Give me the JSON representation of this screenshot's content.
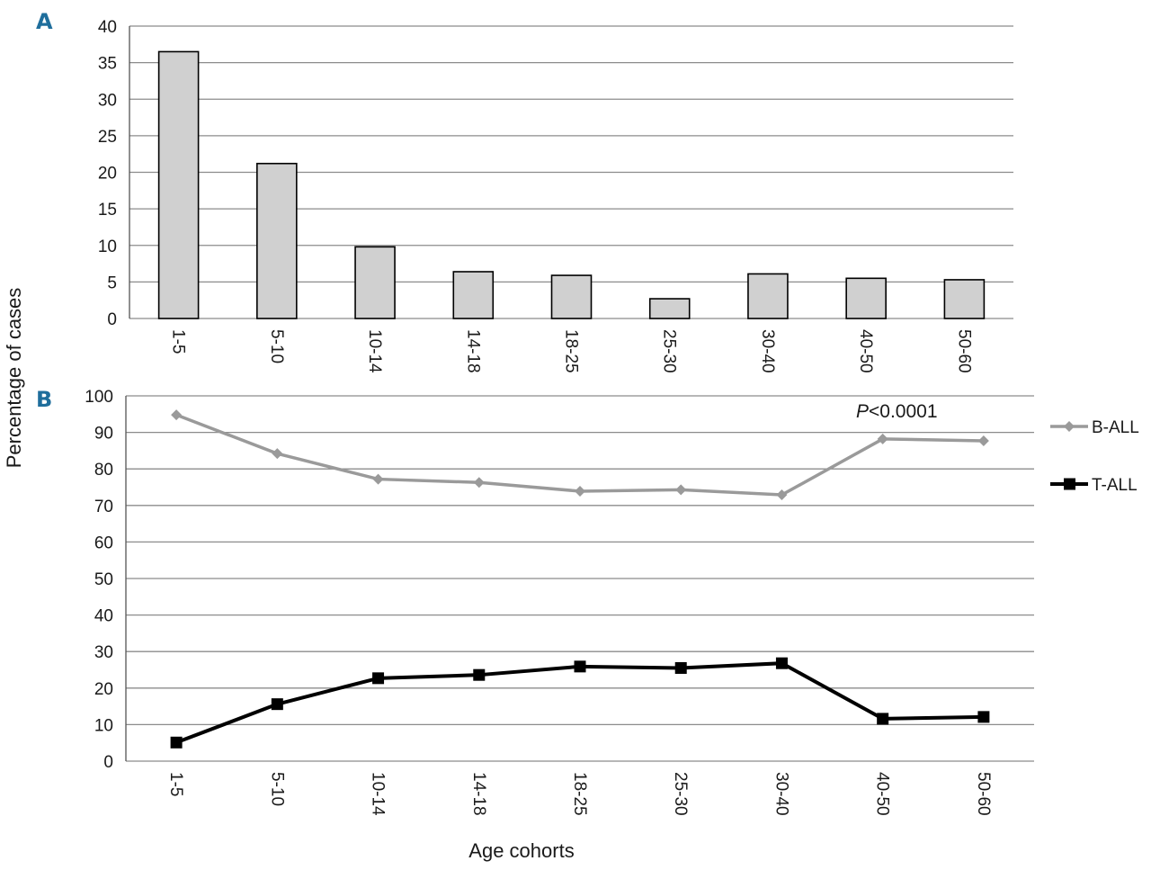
{
  "figure": {
    "ylabel": "Percentage of cases",
    "xlabel": "Age cohorts",
    "accent_color": "#1f6e9c"
  },
  "chart_data": [
    {
      "type": "bar",
      "panel": "A",
      "categories": [
        "1-5",
        "5-10",
        "10-14",
        "14-18",
        "18-25",
        "25-30",
        "30-40",
        "40-50",
        "50-60"
      ],
      "values": [
        36.5,
        21.2,
        9.8,
        6.4,
        5.9,
        2.7,
        6.1,
        5.5,
        5.3
      ],
      "ylim": [
        0,
        40
      ],
      "yticks": [
        0,
        5,
        10,
        15,
        20,
        25,
        30,
        35,
        40
      ],
      "grid": true,
      "bar_color": "#d0d0d0"
    },
    {
      "type": "line",
      "panel": "B",
      "categories": [
        "1-5",
        "5-10",
        "10-14",
        "14-18",
        "18-25",
        "25-30",
        "30-40",
        "40-50",
        "50-60"
      ],
      "series": [
        {
          "name": "B-ALL",
          "values": [
            94.8,
            84.2,
            77.2,
            76.3,
            73.9,
            74.3,
            72.9,
            88.2,
            87.7
          ],
          "color": "#9a9a9a",
          "marker": "diamond"
        },
        {
          "name": "T-ALL",
          "values": [
            5.1,
            15.6,
            22.7,
            23.6,
            25.9,
            25.5,
            26.8,
            11.6,
            12.1
          ],
          "color": "#000000",
          "marker": "square"
        }
      ],
      "ylim": [
        0,
        100
      ],
      "yticks": [
        0,
        10,
        20,
        30,
        40,
        50,
        60,
        70,
        80,
        90,
        100
      ],
      "grid": true,
      "legend": "right",
      "annotation": {
        "italic": "P",
        "rest": "<0.0001"
      }
    }
  ]
}
